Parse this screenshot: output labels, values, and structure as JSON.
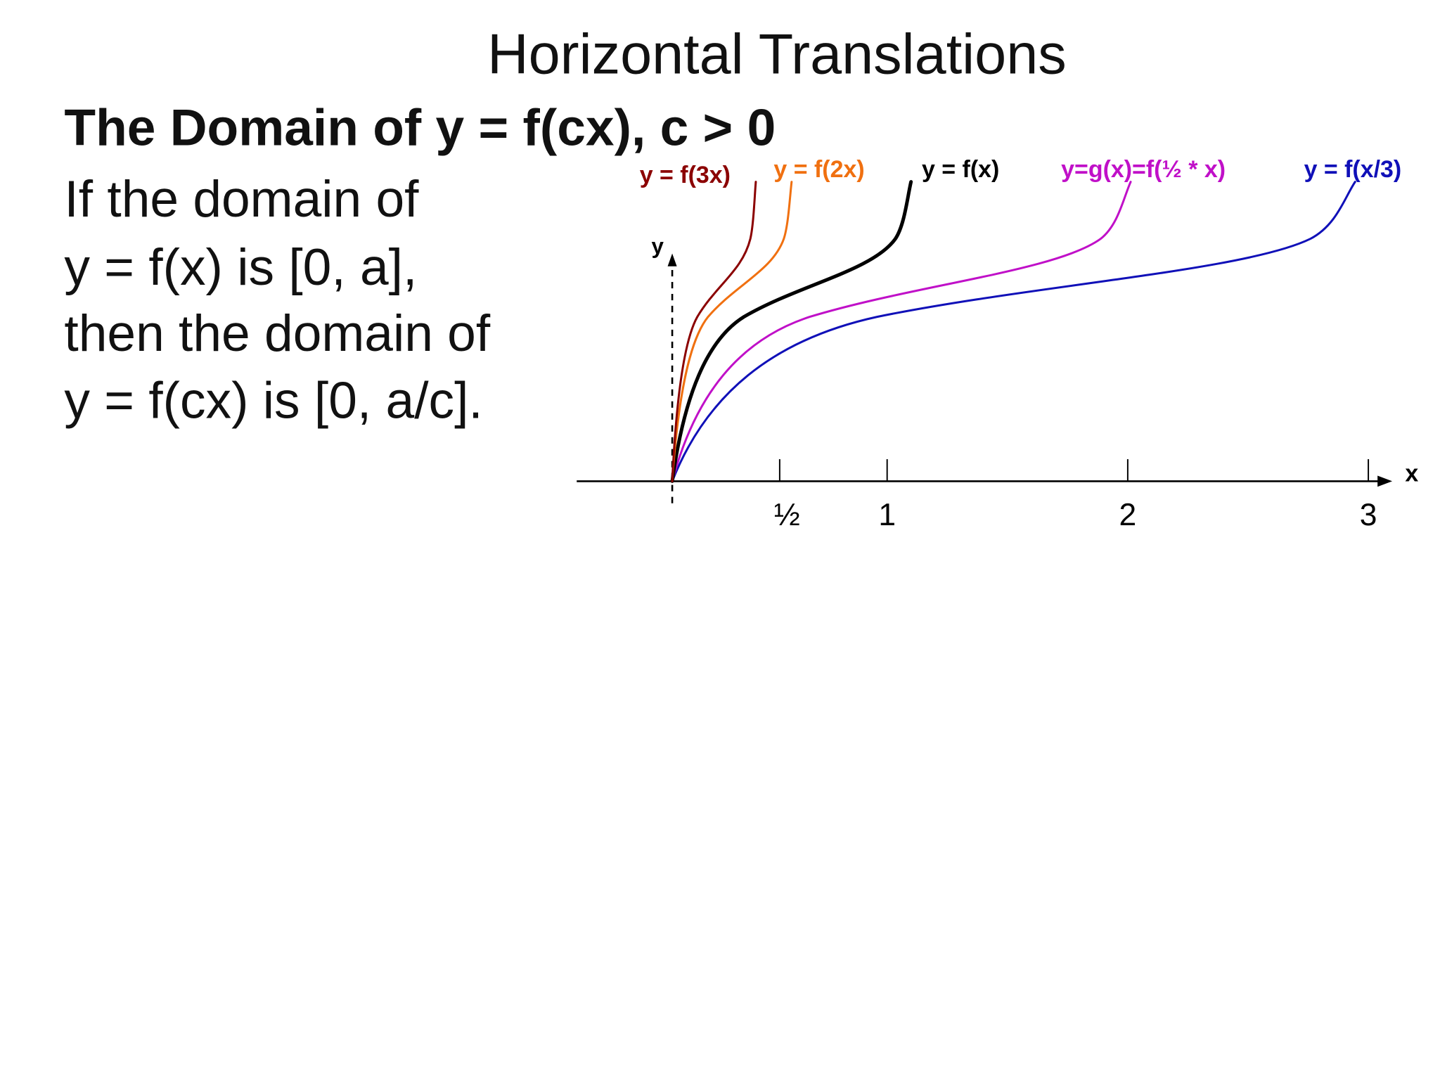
{
  "title": "Horizontal Translations",
  "subtitle": "The Domain of y = f(cx), c > 0",
  "body": [
    "If the domain of",
    "y = f(x) is [0, a],",
    "then the domain of",
    "y = f(cx) is [0, a/c]."
  ],
  "graph": {
    "axis_labels": {
      "x": "x",
      "y": "y"
    },
    "tick_labels": [
      "½",
      "1",
      "2",
      "3"
    ],
    "curve_labels": [
      "y = f(3x)",
      "y = f(2x)",
      "y = f(x)",
      "y=g(x)=f(½ * x)",
      "y = f(x/3)"
    ]
  }
}
